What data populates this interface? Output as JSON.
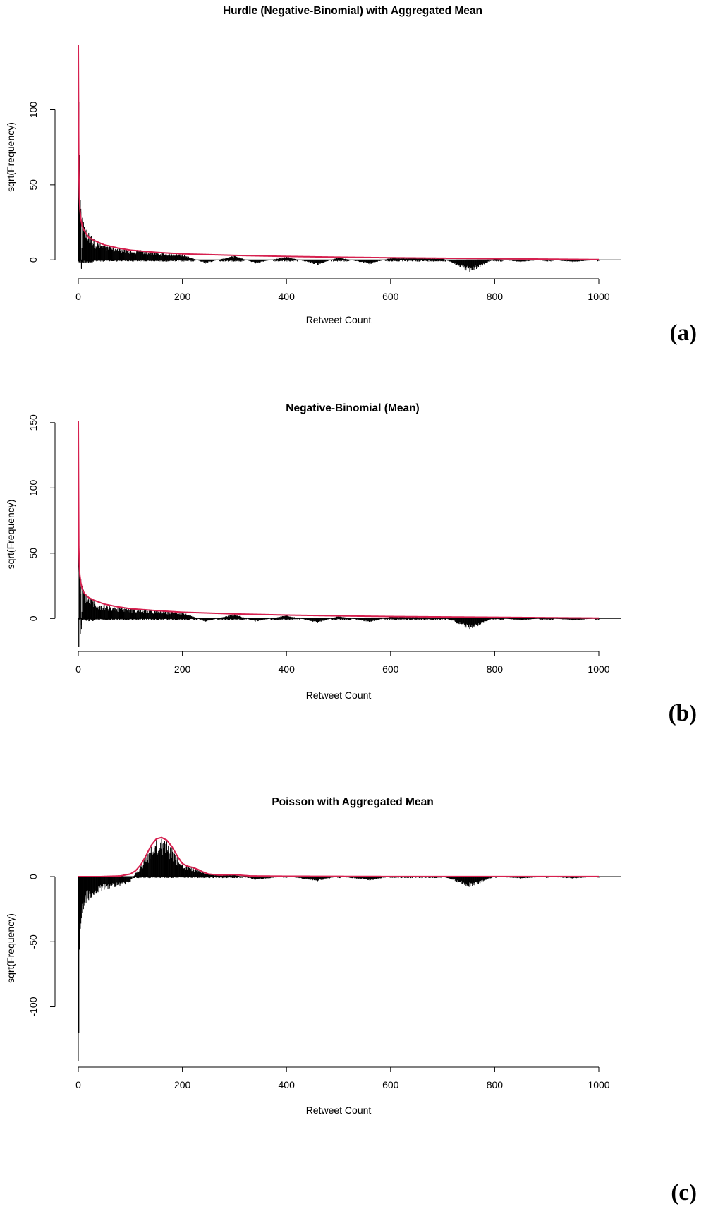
{
  "chart_data": [
    {
      "type": "line",
      "panel_label": "(a)",
      "title": "Hurdle (Negative-Binomial) with Aggregated Mean",
      "xlabel": "Retweet Count",
      "ylabel": "sqrt(Frequency)",
      "xlim": [
        0,
        1000
      ],
      "ylim": [
        -6,
        143
      ],
      "x_ticks": [
        0,
        200,
        400,
        600,
        800,
        1000
      ],
      "y_ticks": [
        0,
        50,
        100
      ],
      "grid": false,
      "legend": "none",
      "colors": {
        "curve": "#d6204f",
        "spikes": "#000000"
      },
      "series": [
        {
          "kind": "curve",
          "x": [
            0,
            1,
            2,
            3,
            5,
            8,
            12,
            20,
            30,
            50,
            75,
            100,
            150,
            200,
            300,
            400,
            500,
            600,
            700,
            800,
            900,
            1000
          ],
          "y": [
            143,
            60,
            42,
            34,
            27,
            22,
            19,
            15,
            13,
            10,
            8,
            6.5,
            5,
            4,
            3,
            2.3,
            1.8,
            1.4,
            1.1,
            0.8,
            0.5,
            0.2
          ]
        },
        {
          "kind": "residual-spikes",
          "x": [
            0,
            1,
            2,
            3,
            4,
            5,
            6,
            8,
            10,
            12,
            15,
            20,
            25,
            30,
            40,
            50,
            60,
            80,
            100,
            120,
            150,
            200,
            244,
            300,
            340,
            400,
            460,
            500,
            560,
            600,
            700,
            745,
            752,
            762,
            800,
            850,
            900,
            950,
            1000
          ],
          "y": [
            143,
            105,
            70,
            50,
            40,
            34,
            -6,
            28,
            25,
            22,
            20,
            18,
            16,
            14,
            12,
            10,
            9,
            8,
            7,
            6.5,
            5,
            4,
            -2.5,
            3,
            -2.5,
            2.3,
            -3.5,
            1.8,
            -3,
            1.4,
            1.1,
            -7,
            -8,
            -7,
            0.8,
            -1.5,
            0.5,
            -1.5,
            0.2
          ]
        }
      ]
    },
    {
      "type": "line",
      "panel_label": "(b)",
      "title": "Negative-Binomial (Mean)",
      "xlabel": "Retweet Count",
      "ylabel": "sqrt(Frequency)",
      "xlim": [
        0,
        1000
      ],
      "ylim": [
        -22,
        151
      ],
      "x_ticks": [
        0,
        200,
        400,
        600,
        800,
        1000
      ],
      "y_ticks": [
        0,
        50,
        100,
        150
      ],
      "grid": false,
      "legend": "none",
      "colors": {
        "curve": "#d6204f",
        "spikes": "#000000"
      },
      "series": [
        {
          "kind": "curve",
          "x": [
            0,
            1,
            2,
            3,
            5,
            8,
            12,
            20,
            30,
            50,
            75,
            100,
            150,
            200,
            300,
            400,
            500,
            600,
            700,
            800,
            900,
            1000
          ],
          "y": [
            151,
            55,
            40,
            33,
            27,
            22,
            19,
            16,
            14,
            11,
            9,
            7.5,
            6,
            4.8,
            3.5,
            2.6,
            2,
            1.5,
            1.2,
            0.9,
            0.6,
            0.3
          ]
        },
        {
          "kind": "residual-spikes",
          "x": [
            0,
            1,
            2,
            3,
            4,
            5,
            6,
            8,
            10,
            12,
            15,
            20,
            25,
            30,
            40,
            50,
            60,
            80,
            100,
            120,
            150,
            200,
            244,
            300,
            340,
            400,
            460,
            500,
            560,
            600,
            700,
            745,
            752,
            762,
            800,
            850,
            900,
            950,
            1000
          ],
          "y": [
            151,
            -22,
            50,
            40,
            -12,
            30,
            -8,
            25,
            22,
            20,
            18,
            16,
            15,
            14,
            12,
            11,
            10,
            9,
            8,
            7,
            6,
            5,
            -2.5,
            3.5,
            -2.5,
            2.6,
            -3.5,
            2,
            -3,
            1.5,
            1.2,
            -7,
            -8,
            -7,
            0.9,
            -1.5,
            0.6,
            -1.5,
            0.3
          ]
        }
      ]
    },
    {
      "type": "line",
      "panel_label": "(c)",
      "title": "Poisson with Aggregated Mean",
      "xlabel": "Retweet Count",
      "ylabel": "sqrt(Frequency)",
      "xlim": [
        0,
        1000
      ],
      "ylim": [
        -142,
        32
      ],
      "x_ticks": [
        0,
        200,
        400,
        600,
        800,
        1000
      ],
      "y_ticks": [
        0,
        -50,
        -100
      ],
      "grid": false,
      "legend": "none",
      "colors": {
        "curve": "#d6204f",
        "spikes": "#000000"
      },
      "series": [
        {
          "kind": "curve",
          "x": [
            0,
            40,
            80,
            100,
            110,
            120,
            130,
            140,
            150,
            160,
            170,
            180,
            190,
            200,
            210,
            220,
            230,
            240,
            250,
            270,
            300,
            330,
            400,
            500,
            600,
            700,
            800,
            900,
            1000
          ],
          "y": [
            0,
            0,
            0.5,
            2,
            4.5,
            9,
            16,
            24,
            29,
            30,
            28,
            23,
            16,
            10,
            8,
            7,
            5.5,
            3.5,
            2,
            1.2,
            1.5,
            0.5,
            0.3,
            0.2,
            0.1,
            0.1,
            0.1,
            0.1,
            0.1
          ]
        },
        {
          "kind": "residual-spikes",
          "x": [
            0,
            1,
            2,
            3,
            4,
            5,
            6,
            8,
            10,
            12,
            15,
            20,
            25,
            30,
            40,
            50,
            60,
            70,
            80,
            90,
            100,
            110,
            120,
            130,
            140,
            150,
            160,
            170,
            180,
            190,
            200,
            210,
            220,
            230,
            240,
            250,
            270,
            300,
            340,
            400,
            460,
            500,
            560,
            600,
            700,
            745,
            752,
            762,
            800,
            850,
            900,
            950,
            1000
          ],
          "y": [
            -142,
            -120,
            -56,
            -48,
            -40,
            -36,
            -32,
            -28,
            -25,
            -22,
            -20,
            -18,
            -16,
            -14,
            -12,
            -10,
            -9,
            -8,
            -7,
            -6,
            -4,
            3,
            8,
            15,
            23,
            28,
            29,
            27,
            22,
            15,
            9,
            8,
            7,
            5,
            3.5,
            2,
            1,
            1.5,
            -2.5,
            0.3,
            -3.5,
            0.2,
            -3,
            0.1,
            0.1,
            -7,
            -8,
            -7,
            0.1,
            -1.5,
            0.1,
            -1.5,
            0.1
          ]
        }
      ]
    }
  ]
}
